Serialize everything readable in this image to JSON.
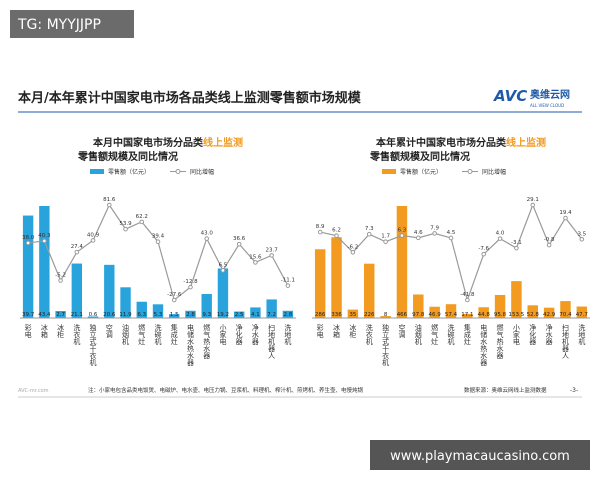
{
  "tag": "TG: MYYJJPP",
  "slide": {
    "title": "本月/本年累计中国家电市场各品类线上监测零售额市场规模",
    "logo": "AVC",
    "logo_cn": "奥维云网",
    "logo_sub": "ALL VIEW CLOUD",
    "note": "注：小家电包含品类电饭煲、电磁炉、电水壶、电压力锅、豆浆机、料理机、榨汁机、煎烤机、养生壶、电慢炖锅",
    "source": "数据来源：奥维云网线上监测数据",
    "page": "-3-",
    "footer_logo": "AVC-mr.com"
  },
  "banner": "www.playmacaucasino.com",
  "chart_data": [
    {
      "type": "bar-line",
      "title_parts": [
        "本月中国家电市场分品类",
        "线上监测",
        "零售额规模及同比情况"
      ],
      "categories": [
        "彩电",
        "冰箱",
        "冰柜",
        "洗衣机",
        "独立式干衣机",
        "空调",
        "油烟机",
        "燃气灶",
        "洗碗机",
        "集成灶",
        "电储水热水器",
        "燃气热水器",
        "小家电",
        "净化器",
        "净水器",
        "扫地机器人",
        "洗地机"
      ],
      "series": [
        {
          "name": "零售额（亿元）",
          "color": "#29a3db",
          "values": [
            39.7,
            43.4,
            2.7,
            21.1,
            0.6,
            20.6,
            11.9,
            6.3,
            5.3,
            1.5,
            2.8,
            9.3,
            19.2,
            2.5,
            4.1,
            7.2,
            2.8
          ]
        },
        {
          "name": "同比增幅",
          "color": "#9a9a9a",
          "axis": "y2",
          "values": [
            38.0,
            40.3,
            -5.2,
            27.4,
            40.9,
            81.6,
            53.9,
            62.2,
            39.4,
            -27.6,
            -12.8,
            43.0,
            6.5,
            36.6,
            15.6,
            23.7,
            -11.1
          ],
          "value_labels": [
            "38.0",
            "40.3",
            "-5.2",
            "27.4",
            "40.9",
            "81.6",
            "53.9",
            "62.2",
            "39.4",
            "-27.6",
            "-12.8",
            "43.0",
            "6.5",
            "36.6",
            "15.6",
            "23.7",
            "-11.1"
          ]
        }
      ]
    },
    {
      "type": "bar-line",
      "title_parts": [
        "本年累计中国家电市场分品类",
        "线上监测",
        "零售额规模及同比情况"
      ],
      "categories": [
        "彩电",
        "冰箱",
        "冰柜",
        "洗衣机",
        "独立式干衣机",
        "空调",
        "油烟机",
        "燃气灶",
        "洗碗机",
        "集成灶",
        "电储水热水器",
        "燃气热水器",
        "小家电",
        "净化器",
        "净水器",
        "扫地机器人",
        "洗地机"
      ],
      "series": [
        {
          "name": "零售额（亿元）",
          "color": "#f29b20",
          "values": [
            286,
            336,
            35,
            226,
            8,
            466,
            97.8,
            46.9,
            57.4,
            17.1,
            44.8,
            95.8,
            153.5,
            52.8,
            42.9,
            70.4,
            47.7
          ]
        },
        {
          "name": "同比增幅",
          "color": "#9a9a9a",
          "axis": "y2",
          "values": [
            8.9,
            6.2,
            -6.2,
            7.3,
            1.7,
            6.3,
            4.6,
            7.9,
            4.5,
            -41.8,
            -7.6,
            4.0,
            -3.1,
            29.1,
            -0.8,
            19.4,
            3.5
          ],
          "value_labels": [
            "8.9",
            "6.2",
            "-6.2",
            "7.3",
            "1.7",
            "6.3",
            "4.6",
            "7.9",
            "4.5",
            "-41.8",
            "-7.6",
            "4.0",
            "-3.1",
            "29.1",
            "-0.8",
            "19.4",
            "3.5"
          ]
        }
      ]
    }
  ]
}
